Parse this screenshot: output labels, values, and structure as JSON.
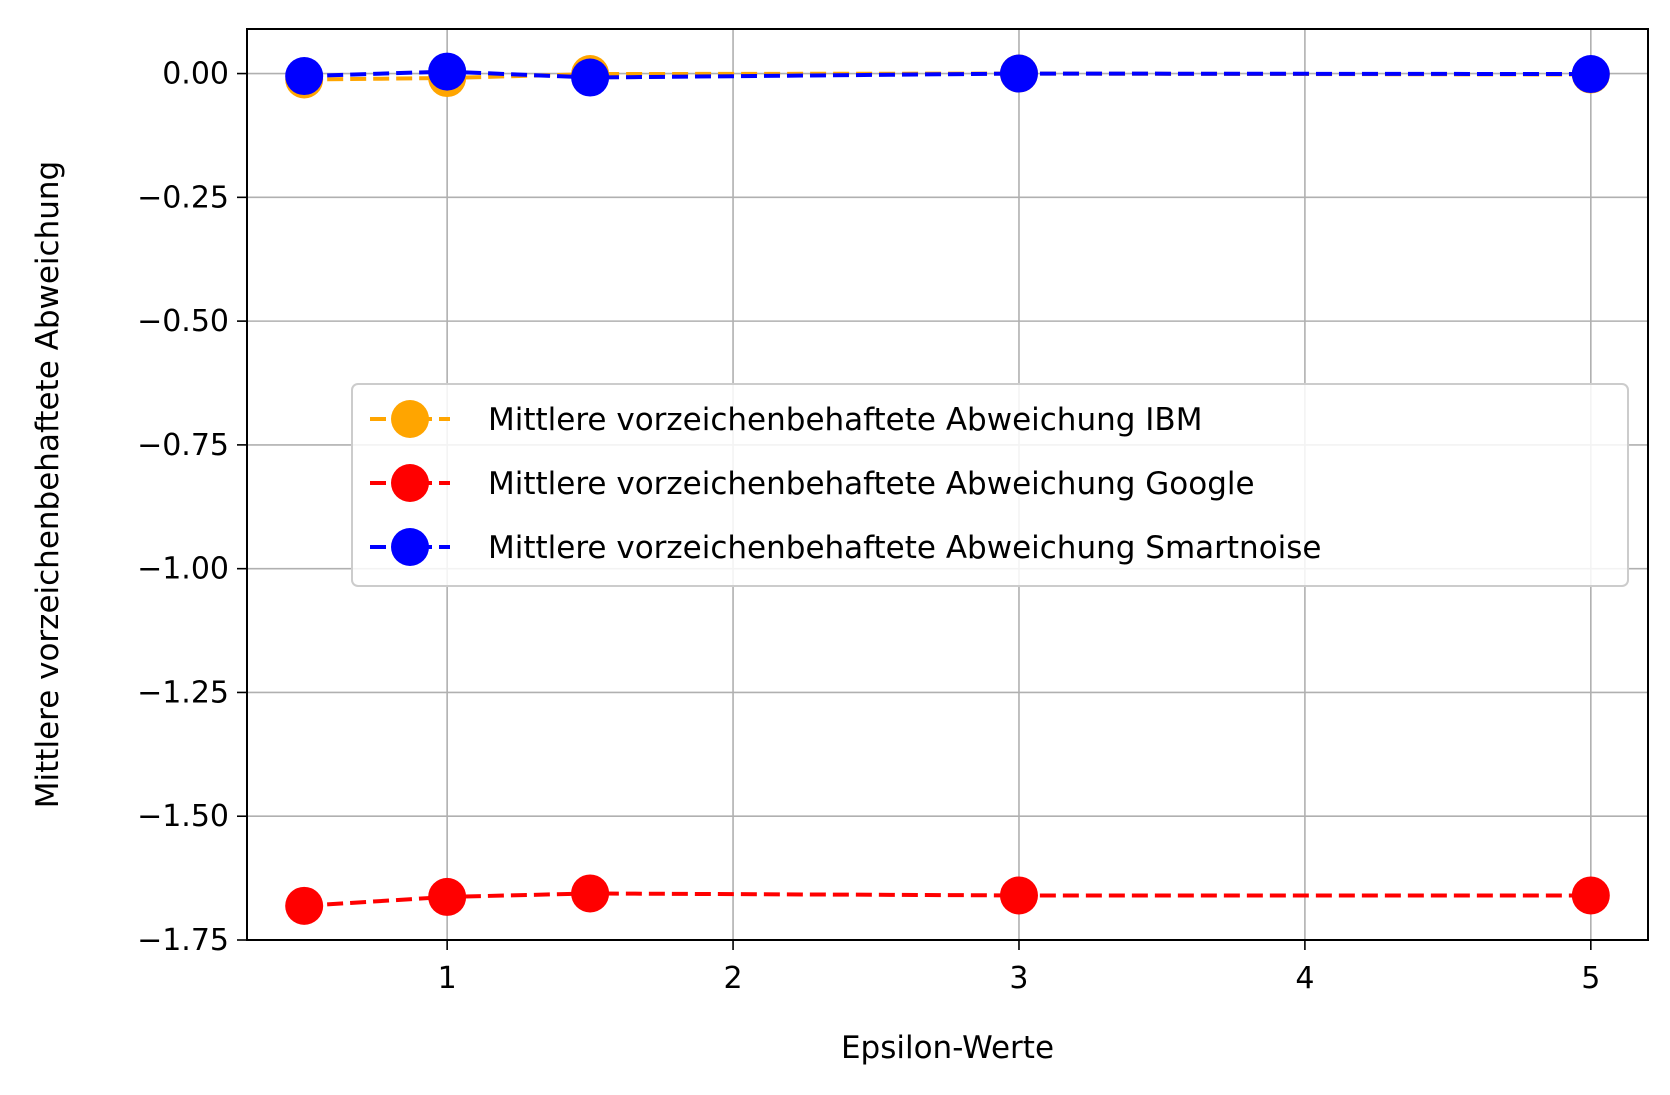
{
  "chart_data": {
    "type": "line",
    "title": "",
    "xlabel": "Epsilon-Werte",
    "ylabel": "Mittlere vorzeichenbehaftete Abweichung",
    "xlim": [
      0.3,
      5.2
    ],
    "ylim": [
      -1.75,
      0.09
    ],
    "x_ticks": [
      1,
      2,
      3,
      4,
      5
    ],
    "x_tick_labels": [
      "1",
      "2",
      "3",
      "4",
      "5"
    ],
    "y_ticks": [
      0.0,
      -0.25,
      -0.5,
      -0.75,
      -1.0,
      -1.25,
      -1.5,
      -1.75
    ],
    "y_tick_labels": [
      "0.00",
      "−0.25",
      "−0.50",
      "−0.75",
      "−1.00",
      "−1.25",
      "−1.50",
      "−1.75"
    ],
    "grid": true,
    "legend_position": "center-right",
    "x": [
      0.5,
      1.0,
      1.5,
      3.0,
      5.0
    ],
    "series": [
      {
        "name": "Mittlere vorzeichenbehaftete Abweichung IBM",
        "color": "#ffa500",
        "values": [
          -0.012,
          -0.009,
          -0.001,
          0.0,
          -0.002
        ]
      },
      {
        "name": "Mittlere vorzeichenbehaftete Abweichung Google",
        "color": "#ff0000",
        "values": [
          -1.681,
          -1.663,
          -1.656,
          -1.66,
          -1.66
        ]
      },
      {
        "name": "Mittlere vorzeichenbehaftete Abweichung Smartnoise",
        "color": "#0000ff",
        "values": [
          -0.005,
          0.004,
          -0.008,
          0.0,
          -0.001
        ]
      }
    ]
  }
}
